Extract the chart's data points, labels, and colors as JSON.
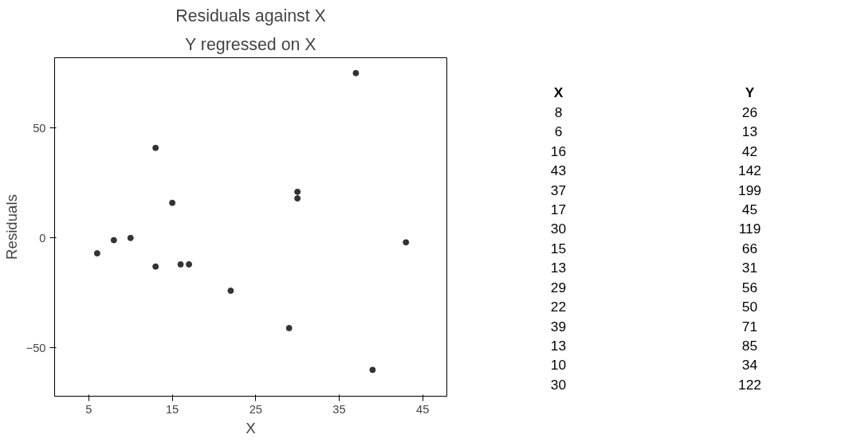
{
  "chart_data": [
    {
      "type": "scatter",
      "title": "Residuals against X",
      "subtitle": "Y regressed on X",
      "xlabel": "X",
      "ylabel": "Residuals",
      "x": [
        8,
        6,
        16,
        43,
        37,
        17,
        30,
        15,
        13,
        29,
        22,
        39,
        13,
        10,
        30
      ],
      "series": [
        {
          "color": "#333333",
          "values": [
            -1,
            -7,
            -12,
            -2,
            75,
            -12,
            18,
            16,
            -13,
            -41,
            -24,
            -60,
            41,
            0,
            21
          ]
        }
      ],
      "xlim": [
        0.9,
        47.9
      ],
      "xticks": [
        5,
        15,
        25,
        35,
        45
      ],
      "ylim": [
        -72,
        82
      ],
      "yticks": [
        -50,
        0,
        50
      ],
      "grid": false,
      "marker": "circle"
    },
    {
      "type": "other",
      "annotations": [
        "X",
        "Y",
        "8",
        "26",
        "6",
        "13",
        "16",
        "42",
        "43",
        "142",
        "37",
        "199",
        "17",
        "45",
        "30",
        "119",
        "15",
        "66",
        "13",
        "31",
        "29",
        "56",
        "22",
        "50",
        "39",
        "71",
        "13",
        "85",
        "10",
        "34",
        "30",
        "122"
      ]
    }
  ]
}
